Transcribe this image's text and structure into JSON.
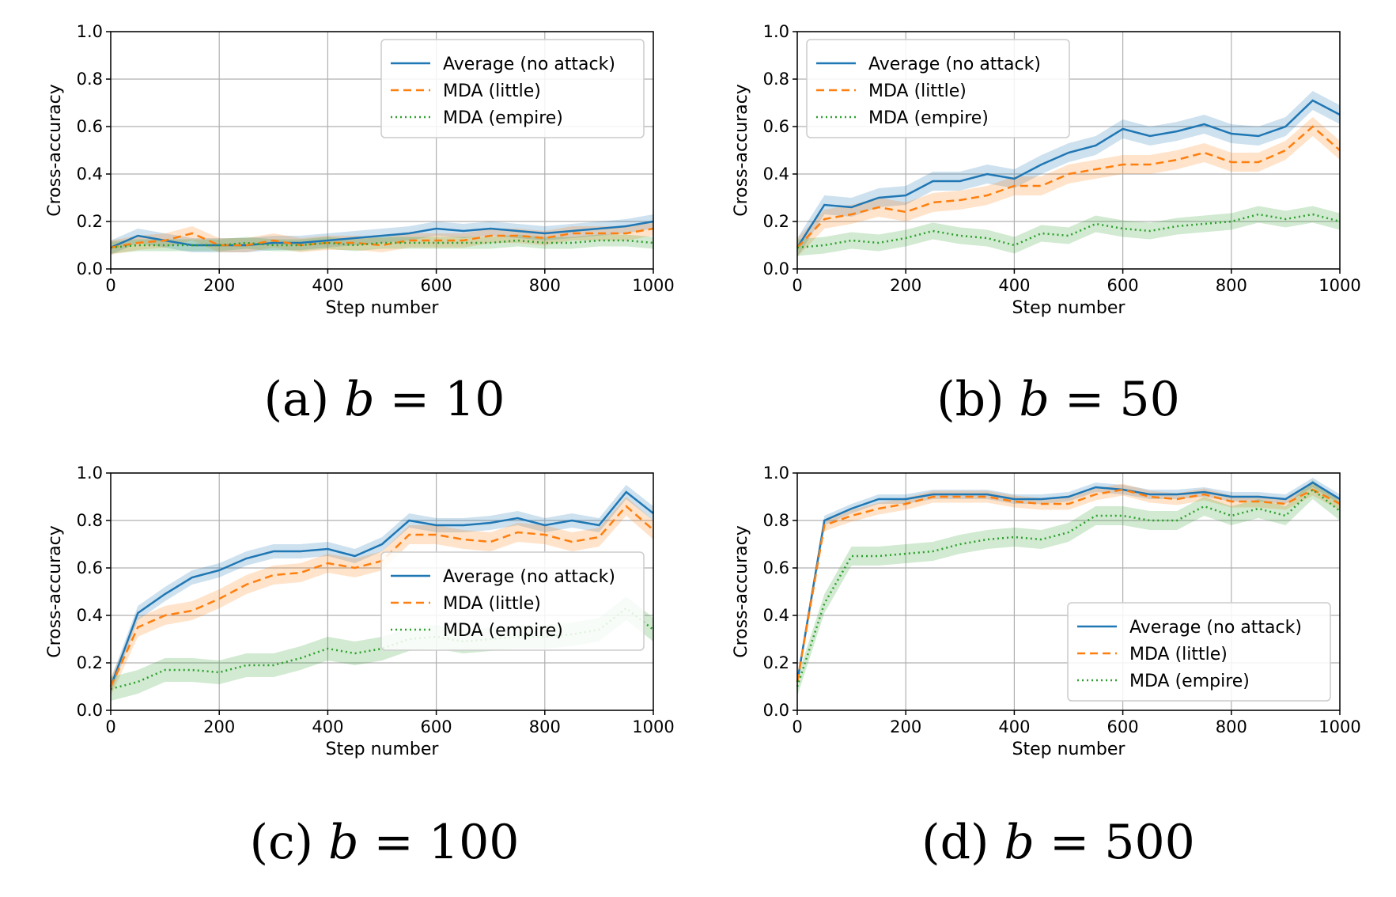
{
  "colors": {
    "average": "#1f77b4",
    "little": "#ff7f0e",
    "empire": "#2ca02c",
    "grid": "#b0b0b0"
  },
  "captions": [
    {
      "prefix": "(a) ",
      "var": "b",
      "rel": " = ",
      "value": "10"
    },
    {
      "prefix": "(b) ",
      "var": "b",
      "rel": " = ",
      "value": "50"
    },
    {
      "prefix": "(c) ",
      "var": "b",
      "rel": " = ",
      "value": "100"
    },
    {
      "prefix": "(d) ",
      "var": "b",
      "rel": " = ",
      "value": "500"
    }
  ],
  "chart_data": [
    {
      "type": "line",
      "xlabel": "Step number",
      "ylabel": "Cross-accuracy",
      "xlim": [
        0,
        1000
      ],
      "ylim": [
        0,
        1
      ],
      "xticks": [
        "0",
        "200",
        "400",
        "600",
        "800",
        "1000"
      ],
      "yticks": [
        "0.0",
        "0.2",
        "0.4",
        "0.6",
        "0.8",
        "1.0"
      ],
      "grid": true,
      "legend_position": "top-right",
      "x": [
        0,
        50,
        100,
        150,
        200,
        250,
        300,
        350,
        400,
        450,
        500,
        550,
        600,
        650,
        700,
        750,
        800,
        850,
        900,
        950,
        1000
      ],
      "series": [
        {
          "name": "Average (no attack)",
          "style": "solid",
          "color_key": "average",
          "values": [
            0.09,
            0.14,
            0.12,
            0.1,
            0.1,
            0.1,
            0.11,
            0.11,
            0.12,
            0.13,
            0.14,
            0.15,
            0.17,
            0.16,
            0.17,
            0.16,
            0.15,
            0.16,
            0.17,
            0.18,
            0.2
          ],
          "band": 0.03
        },
        {
          "name": "MDA (little)",
          "style": "dashed",
          "color_key": "little",
          "values": [
            0.09,
            0.11,
            0.12,
            0.15,
            0.1,
            0.1,
            0.12,
            0.1,
            0.11,
            0.11,
            0.1,
            0.12,
            0.12,
            0.12,
            0.14,
            0.14,
            0.13,
            0.15,
            0.15,
            0.15,
            0.17
          ],
          "band": 0.03
        },
        {
          "name": "MDA (empire)",
          "style": "dotted",
          "color_key": "empire",
          "values": [
            0.09,
            0.1,
            0.1,
            0.1,
            0.1,
            0.11,
            0.1,
            0.1,
            0.11,
            0.1,
            0.11,
            0.11,
            0.11,
            0.11,
            0.11,
            0.12,
            0.11,
            0.11,
            0.12,
            0.12,
            0.11
          ],
          "band": 0.025
        }
      ]
    },
    {
      "type": "line",
      "xlabel": "Step number",
      "ylabel": "Cross-accuracy",
      "xlim": [
        0,
        1000
      ],
      "ylim": [
        0,
        1
      ],
      "xticks": [
        "0",
        "200",
        "400",
        "600",
        "800",
        "1000"
      ],
      "yticks": [
        "0.0",
        "0.2",
        "0.4",
        "0.6",
        "0.8",
        "1.0"
      ],
      "grid": true,
      "legend_position": "top-left",
      "x": [
        0,
        50,
        100,
        150,
        200,
        250,
        300,
        350,
        400,
        450,
        500,
        550,
        600,
        650,
        700,
        750,
        800,
        850,
        900,
        950,
        1000
      ],
      "series": [
        {
          "name": "Average (no attack)",
          "style": "solid",
          "color_key": "average",
          "values": [
            0.09,
            0.27,
            0.26,
            0.3,
            0.31,
            0.37,
            0.37,
            0.4,
            0.38,
            0.44,
            0.49,
            0.52,
            0.59,
            0.56,
            0.58,
            0.61,
            0.57,
            0.56,
            0.6,
            0.71,
            0.65
          ],
          "band": 0.04
        },
        {
          "name": "MDA (little)",
          "style": "dashed",
          "color_key": "little",
          "values": [
            0.09,
            0.21,
            0.23,
            0.26,
            0.24,
            0.28,
            0.29,
            0.31,
            0.35,
            0.35,
            0.4,
            0.42,
            0.44,
            0.44,
            0.46,
            0.49,
            0.45,
            0.45,
            0.5,
            0.6,
            0.5
          ],
          "band": 0.04
        },
        {
          "name": "MDA (empire)",
          "style": "dotted",
          "color_key": "empire",
          "values": [
            0.09,
            0.1,
            0.12,
            0.11,
            0.13,
            0.16,
            0.14,
            0.13,
            0.1,
            0.15,
            0.14,
            0.19,
            0.17,
            0.16,
            0.18,
            0.19,
            0.2,
            0.23,
            0.21,
            0.23,
            0.2
          ],
          "band": 0.035
        }
      ]
    },
    {
      "type": "line",
      "xlabel": "Step number",
      "ylabel": "Cross-accuracy",
      "xlim": [
        0,
        1000
      ],
      "ylim": [
        0,
        1
      ],
      "xticks": [
        "0",
        "200",
        "400",
        "600",
        "800",
        "1000"
      ],
      "yticks": [
        "0.0",
        "0.2",
        "0.4",
        "0.6",
        "0.8",
        "1.0"
      ],
      "grid": true,
      "legend_position": "center-right",
      "x": [
        0,
        50,
        100,
        150,
        200,
        250,
        300,
        350,
        400,
        450,
        500,
        550,
        600,
        650,
        700,
        750,
        800,
        850,
        900,
        950,
        1000
      ],
      "series": [
        {
          "name": "Average (no attack)",
          "style": "solid",
          "color_key": "average",
          "values": [
            0.1,
            0.41,
            0.49,
            0.56,
            0.59,
            0.64,
            0.67,
            0.67,
            0.68,
            0.65,
            0.7,
            0.8,
            0.78,
            0.78,
            0.79,
            0.81,
            0.78,
            0.8,
            0.78,
            0.92,
            0.83
          ],
          "band": 0.03
        },
        {
          "name": "MDA (little)",
          "style": "dashed",
          "color_key": "little",
          "values": [
            0.1,
            0.35,
            0.4,
            0.42,
            0.47,
            0.53,
            0.57,
            0.58,
            0.62,
            0.6,
            0.63,
            0.74,
            0.74,
            0.72,
            0.71,
            0.75,
            0.74,
            0.71,
            0.73,
            0.86,
            0.76
          ],
          "band": 0.04
        },
        {
          "name": "MDA (empire)",
          "style": "dotted",
          "color_key": "empire",
          "values": [
            0.09,
            0.12,
            0.17,
            0.17,
            0.16,
            0.19,
            0.19,
            0.22,
            0.26,
            0.24,
            0.26,
            0.3,
            0.31,
            0.29,
            0.3,
            0.31,
            0.31,
            0.32,
            0.34,
            0.43,
            0.34
          ],
          "band": 0.05
        }
      ]
    },
    {
      "type": "line",
      "xlabel": "Step number",
      "ylabel": "Cross-accuracy",
      "xlim": [
        0,
        1000
      ],
      "ylim": [
        0,
        1
      ],
      "xticks": [
        "0",
        "200",
        "400",
        "600",
        "800",
        "1000"
      ],
      "yticks": [
        "0.0",
        "0.2",
        "0.4",
        "0.6",
        "0.8",
        "1.0"
      ],
      "grid": true,
      "legend_position": "bottom-right",
      "x": [
        0,
        50,
        100,
        150,
        200,
        250,
        300,
        350,
        400,
        450,
        500,
        550,
        600,
        650,
        700,
        750,
        800,
        850,
        900,
        950,
        1000
      ],
      "series": [
        {
          "name": "Average (no attack)",
          "style": "solid",
          "color_key": "average",
          "values": [
            0.12,
            0.8,
            0.85,
            0.89,
            0.89,
            0.91,
            0.91,
            0.91,
            0.89,
            0.89,
            0.9,
            0.94,
            0.93,
            0.91,
            0.91,
            0.92,
            0.9,
            0.9,
            0.89,
            0.96,
            0.89
          ],
          "band": 0.02
        },
        {
          "name": "MDA (little)",
          "style": "dashed",
          "color_key": "little",
          "values": [
            0.12,
            0.78,
            0.82,
            0.85,
            0.87,
            0.9,
            0.9,
            0.9,
            0.88,
            0.87,
            0.87,
            0.91,
            0.93,
            0.9,
            0.89,
            0.91,
            0.88,
            0.88,
            0.87,
            0.93,
            0.87
          ],
          "band": 0.025
        },
        {
          "name": "MDA (empire)",
          "style": "dotted",
          "color_key": "empire",
          "values": [
            0.1,
            0.45,
            0.65,
            0.65,
            0.66,
            0.67,
            0.7,
            0.72,
            0.73,
            0.72,
            0.75,
            0.82,
            0.82,
            0.8,
            0.8,
            0.86,
            0.82,
            0.85,
            0.82,
            0.93,
            0.84
          ],
          "band": 0.04
        }
      ]
    }
  ]
}
